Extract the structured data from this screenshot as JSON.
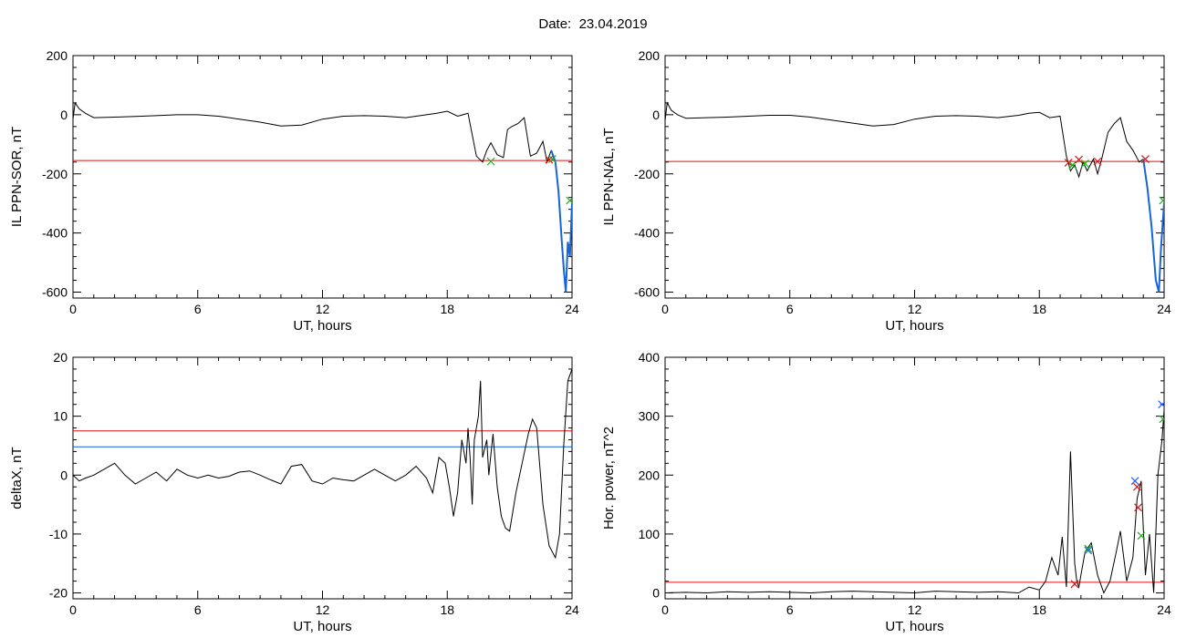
{
  "header": {
    "date_label": "Date:",
    "date_value": "23.04.2019"
  },
  "colors": {
    "curve": "#000000",
    "threshold_red": "#e01010",
    "threshold_blue": "#1060d0",
    "segment_blue": "#1565d8",
    "marker_red": "#e01010",
    "marker_green": "#19b019",
    "marker_blue": "#2060ff"
  },
  "chart_data": [
    {
      "type": "line",
      "xlabel": "UT, hours",
      "ylabel": "IL PPN-SOR, nT",
      "xlim": [
        0,
        24
      ],
      "ylim": [
        -620,
        200
      ],
      "xticks": [
        0,
        6,
        12,
        18,
        24
      ],
      "yticks": [
        200,
        0,
        -200,
        -400,
        -600
      ],
      "xtick_labels": [
        "0",
        "6",
        "12",
        "18",
        "24"
      ],
      "ytick_labels": [
        "200",
        "0",
        "-200",
        "-400",
        "-600"
      ],
      "thresholds": [
        {
          "value": -155,
          "color": "red"
        }
      ],
      "series": [
        {
          "x": [
            0,
            0.1,
            0.3,
            0.6,
            1,
            2,
            3,
            4,
            5,
            6,
            7,
            8,
            9,
            10,
            11,
            12,
            13,
            14,
            15,
            16,
            17,
            17.5,
            18,
            18.5,
            19,
            19.4,
            19.7,
            19.9,
            20.1,
            20.4,
            20.7,
            20.9,
            21.1,
            21.4,
            21.7,
            22,
            22.3,
            22.6,
            22.8,
            23,
            23.2,
            23.35,
            23.5,
            23.6,
            23.7,
            23.8,
            23.9,
            24
          ],
          "y": [
            -15,
            40,
            20,
            5,
            -10,
            -8,
            -6,
            -3,
            0,
            0,
            -5,
            -15,
            -25,
            -38,
            -35,
            -15,
            -5,
            -3,
            -5,
            -10,
            0,
            5,
            12,
            -5,
            5,
            -140,
            -160,
            -120,
            -95,
            -135,
            -145,
            -50,
            -40,
            -30,
            -10,
            -140,
            -130,
            -90,
            -160,
            -120,
            -160,
            -260,
            -420,
            -520,
            -600,
            -430,
            -480,
            -300
          ]
        }
      ],
      "blue_segment_start_x": 23.2,
      "markers": [
        {
          "x": 20.1,
          "y": -158,
          "color": "green"
        },
        {
          "x": 22.9,
          "y": -152,
          "color": "red"
        },
        {
          "x": 23.05,
          "y": -150,
          "color": "green"
        },
        {
          "x": 23.9,
          "y": -290,
          "color": "green"
        }
      ]
    },
    {
      "type": "line",
      "xlabel": "UT, hours",
      "ylabel": "IL PPN-NAL, nT",
      "xlim": [
        0,
        24
      ],
      "ylim": [
        -620,
        200
      ],
      "xticks": [
        0,
        6,
        12,
        18,
        24
      ],
      "yticks": [
        200,
        0,
        -200,
        -400,
        -600
      ],
      "xtick_labels": [
        "0",
        "6",
        "12",
        "18",
        "24"
      ],
      "ytick_labels": [
        "200",
        "0",
        "-200",
        "-400",
        "-600"
      ],
      "thresholds": [
        {
          "value": -158,
          "color": "red"
        }
      ],
      "series": [
        {
          "x": [
            0,
            0.1,
            0.3,
            0.6,
            1,
            2,
            3,
            4,
            5,
            6,
            7,
            8,
            9,
            10,
            11,
            12,
            13,
            14,
            15,
            16,
            17,
            17.5,
            18,
            18.5,
            19,
            19.3,
            19.5,
            19.7,
            19.9,
            20.1,
            20.3,
            20.6,
            20.8,
            21,
            21.3,
            21.6,
            21.9,
            22.2,
            22.5,
            22.8,
            23,
            23.2,
            23.4,
            23.6,
            23.75,
            23.85,
            24
          ],
          "y": [
            -20,
            40,
            15,
            0,
            -12,
            -10,
            -8,
            -5,
            -2,
            -2,
            -8,
            -18,
            -28,
            -38,
            -33,
            -15,
            -5,
            -3,
            -5,
            -10,
            -2,
            5,
            8,
            -10,
            -5,
            -140,
            -190,
            -170,
            -210,
            -160,
            -190,
            -150,
            -200,
            -150,
            -60,
            -30,
            -10,
            -90,
            -120,
            -160,
            -150,
            -250,
            -380,
            -560,
            -600,
            -450,
            -300
          ]
        }
      ],
      "blue_segment_start_x": 23.2,
      "markers": [
        {
          "x": 19.4,
          "y": -162,
          "color": "red"
        },
        {
          "x": 19.6,
          "y": -170,
          "color": "green"
        },
        {
          "x": 19.9,
          "y": -152,
          "color": "red"
        },
        {
          "x": 20.2,
          "y": -165,
          "color": "green"
        },
        {
          "x": 20.8,
          "y": -158,
          "color": "red"
        },
        {
          "x": 23.1,
          "y": -150,
          "color": "red"
        },
        {
          "x": 23.95,
          "y": -290,
          "color": "green"
        }
      ]
    },
    {
      "type": "line",
      "xlabel": "UT, hours",
      "ylabel": "deltaX, nT",
      "xlim": [
        0,
        24
      ],
      "ylim": [
        -21,
        20
      ],
      "xticks": [
        0,
        6,
        12,
        18,
        24
      ],
      "yticks": [
        20,
        10,
        0,
        -10,
        -20
      ],
      "xtick_labels": [
        "0",
        "6",
        "12",
        "18",
        "24"
      ],
      "ytick_labels": [
        "20",
        "10",
        "0",
        "-10",
        "-20"
      ],
      "thresholds": [
        {
          "value": 7.5,
          "color": "red"
        },
        {
          "value": 4.8,
          "color": "blue"
        }
      ],
      "series": [
        {
          "x": [
            0,
            0.3,
            0.6,
            1,
            1.5,
            2,
            2.5,
            3,
            3.5,
            4,
            4.5,
            5,
            5.5,
            6,
            6.5,
            7,
            7.5,
            8,
            8.5,
            9,
            9.5,
            10,
            10.5,
            11,
            11.5,
            12,
            12.5,
            13,
            13.5,
            14,
            14.5,
            15,
            15.5,
            16,
            16.5,
            17,
            17.3,
            17.6,
            17.9,
            18.1,
            18.3,
            18.5,
            18.7,
            18.9,
            19,
            19.1,
            19.2,
            19.3,
            19.5,
            19.6,
            19.7,
            19.9,
            20,
            20.2,
            20.4,
            20.6,
            20.8,
            21,
            21.3,
            21.6,
            21.9,
            22.1,
            22.3,
            22.6,
            22.9,
            23.2,
            23.4,
            23.6,
            23.8,
            24
          ],
          "y": [
            0,
            -1,
            -0.5,
            0,
            1,
            2,
            0,
            -1.5,
            -0.5,
            0.5,
            -1,
            1,
            0,
            -0.5,
            0,
            -0.5,
            -0.2,
            0.5,
            0.7,
            0,
            -0.8,
            -1.5,
            1.5,
            1.8,
            -1,
            -1.5,
            -0.5,
            -0.8,
            -1,
            0,
            1,
            0,
            -1,
            0,
            1.5,
            -0.5,
            -3,
            3,
            2,
            -2,
            -7,
            -3,
            6,
            2,
            8,
            3,
            -5,
            6,
            10,
            16,
            3,
            6,
            0,
            7,
            -2,
            -7,
            -9,
            -9.5,
            -3,
            2,
            7,
            9.5,
            8,
            -5,
            -12,
            -14,
            -10,
            5,
            16,
            18
          ]
        }
      ],
      "markers": []
    },
    {
      "type": "line",
      "xlabel": "UT, hours",
      "ylabel": "Hor. power, nT^2",
      "xlim": [
        0,
        24
      ],
      "ylim": [
        -10,
        400
      ],
      "xticks": [
        0,
        6,
        12,
        18,
        24
      ],
      "yticks": [
        400,
        300,
        200,
        100,
        0
      ],
      "xtick_labels": [
        "0",
        "6",
        "12",
        "18",
        "24"
      ],
      "ytick_labels": [
        "400",
        "300",
        "200",
        "100",
        "0"
      ],
      "thresholds": [
        {
          "value": 18,
          "color": "red"
        }
      ],
      "series": [
        {
          "x": [
            0,
            1,
            2,
            3,
            4,
            5,
            6,
            7,
            8,
            9,
            10,
            11,
            12,
            13,
            14,
            15,
            16,
            17,
            17.5,
            18,
            18.3,
            18.6,
            18.9,
            19.1,
            19.3,
            19.5,
            19.7,
            19.8,
            19.9,
            20,
            20.2,
            20.5,
            20.8,
            21.1,
            21.4,
            21.7,
            21.9,
            22.2,
            22.5,
            22.7,
            22.9,
            23.1,
            23.3,
            23.5,
            23.7,
            23.9,
            24
          ],
          "y": [
            0,
            1,
            0,
            2,
            1,
            2,
            1,
            0,
            2,
            3,
            2,
            1,
            0,
            3,
            2,
            1,
            2,
            0,
            10,
            5,
            20,
            60,
            30,
            95,
            10,
            240,
            50,
            20,
            10,
            30,
            70,
            85,
            30,
            0,
            20,
            70,
            105,
            20,
            60,
            160,
            190,
            30,
            100,
            0,
            200,
            260,
            310
          ]
        }
      ],
      "markers": [
        {
          "x": 19.7,
          "y": 15,
          "color": "red"
        },
        {
          "x": 20.35,
          "y": 75,
          "color": "green"
        },
        {
          "x": 20.35,
          "y": 72,
          "color": "blue"
        },
        {
          "x": 22.6,
          "y": 190,
          "color": "blue"
        },
        {
          "x": 22.7,
          "y": 180,
          "color": "red"
        },
        {
          "x": 22.75,
          "y": 145,
          "color": "red"
        },
        {
          "x": 22.9,
          "y": 97,
          "color": "green"
        },
        {
          "x": 23.9,
          "y": 320,
          "color": "blue"
        },
        {
          "x": 23.95,
          "y": 295,
          "color": "green"
        }
      ]
    }
  ]
}
